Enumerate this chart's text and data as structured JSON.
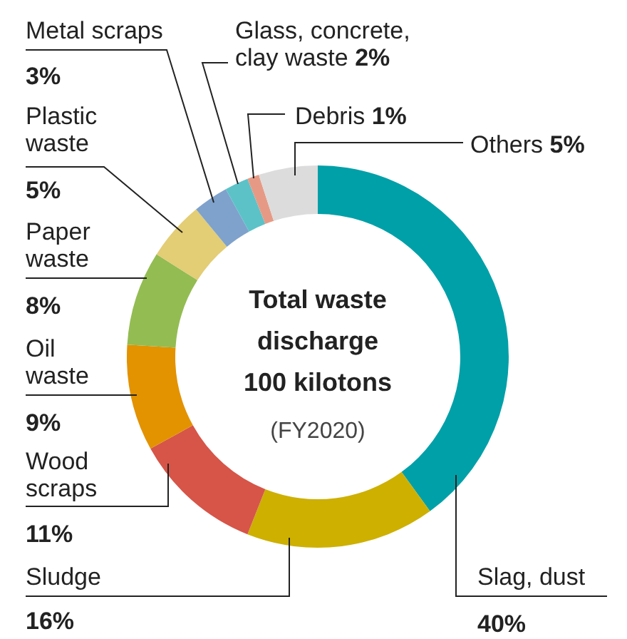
{
  "chart_data": {
    "type": "donut",
    "title": "Total waste discharge 100 kilotons",
    "subtitle": "(FY2020)",
    "categories": [
      "Slag, dust",
      "Sludge",
      "Wood scraps",
      "Oil waste",
      "Paper waste",
      "Plastic waste",
      "Metal scraps",
      "Glass, concrete, clay waste",
      "Debris",
      "Others"
    ],
    "values": [
      40,
      16,
      11,
      9,
      8,
      5,
      3,
      2,
      1,
      5
    ],
    "colors": [
      "#00a0a8",
      "#cdb000",
      "#d65548",
      "#e39200",
      "#93bc52",
      "#e3cd75",
      "#7fa2cc",
      "#5cc2c8",
      "#e69a85",
      "#dcdcdc"
    ],
    "value_labels": [
      "40%",
      "16%",
      "11%",
      "9%",
      "8%",
      "5%",
      "3%",
      "2%",
      "1%",
      "5%"
    ]
  }
}
